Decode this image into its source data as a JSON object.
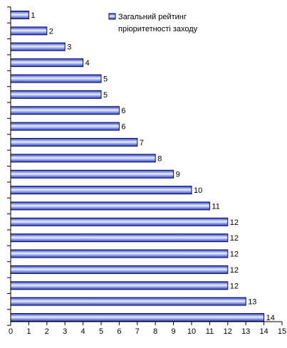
{
  "chart_data": {
    "type": "bar",
    "orientation": "horizontal",
    "series": [
      {
        "name": "Загальний рейтинг пріоритетності заходу",
        "values": [
          1,
          2,
          3,
          4,
          5,
          5,
          6,
          6,
          7,
          8,
          9,
          10,
          11,
          12,
          12,
          12,
          12,
          12,
          13,
          14
        ]
      }
    ],
    "value_labels": [
      "1",
      "2",
      "3",
      "4",
      "5",
      "5",
      "6",
      "6",
      "7",
      "8",
      "9",
      "10",
      "11",
      "12",
      "12",
      "12",
      "12",
      "12",
      "13",
      "14"
    ],
    "xlim": [
      0,
      15
    ],
    "x_ticks": [
      "0",
      "1",
      "2",
      "3",
      "4",
      "5",
      "6",
      "7",
      "8",
      "9",
      "10",
      "11",
      "12",
      "13",
      "14",
      "15"
    ],
    "legend": {
      "position": "top-right",
      "lines": [
        "Загальний рейтинг",
        "пріоритетності заходу"
      ]
    },
    "grid": false,
    "colors": {
      "bar_dark": "#2b3fc4",
      "bar_light": "#eaf0ff",
      "bar_edge": "#0a0a60",
      "axis": "#000000"
    }
  }
}
